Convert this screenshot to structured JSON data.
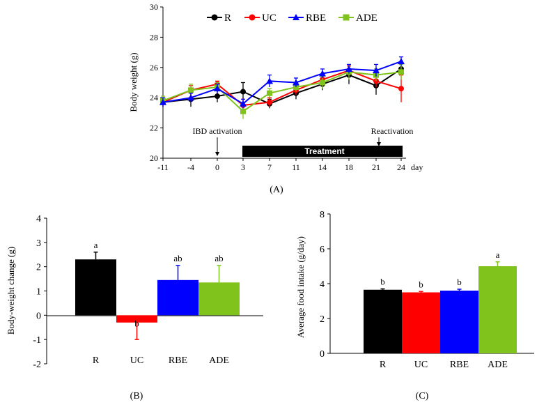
{
  "colors": {
    "R": "#000000",
    "UC": "#ff0000",
    "RBE": "#0000ff",
    "ADE": "#7fc31c"
  },
  "chart_data": [
    {
      "panel": "(A)",
      "type": "line",
      "ylabel": "Body weight (g)",
      "xunit": "day",
      "x": [
        "-11",
        "-4",
        "0",
        "3",
        "7",
        "11",
        "14",
        "18",
        "21",
        "24"
      ],
      "ylim": [
        20,
        30
      ],
      "yticks": [
        20,
        22,
        24,
        26,
        28,
        30
      ],
      "series": [
        {
          "name": "R",
          "values": [
            23.7,
            23.9,
            24.1,
            24.4,
            23.6,
            24.3,
            24.9,
            25.5,
            24.8,
            25.9
          ],
          "err": [
            0.3,
            0.5,
            0.4,
            0.6,
            0.3,
            0.4,
            0.4,
            0.6,
            0.6,
            0.3
          ]
        },
        {
          "name": "UC",
          "values": [
            23.7,
            24.5,
            24.9,
            23.5,
            23.7,
            24.5,
            25.2,
            25.8,
            25.1,
            24.6
          ],
          "err": [
            0.3,
            0.3,
            0.2,
            0.4,
            0.3,
            0.3,
            0.3,
            0.3,
            0.4,
            0.9
          ]
        },
        {
          "name": "RBE",
          "values": [
            23.7,
            24.0,
            24.6,
            23.6,
            25.1,
            25.0,
            25.6,
            25.9,
            25.8,
            26.4
          ],
          "err": [
            0.3,
            0.3,
            0.3,
            0.3,
            0.4,
            0.3,
            0.3,
            0.3,
            0.4,
            0.3
          ]
        },
        {
          "name": "ADE",
          "values": [
            23.8,
            24.5,
            24.7,
            23.1,
            24.3,
            24.7,
            25.0,
            25.7,
            25.5,
            25.7
          ],
          "err": [
            0.3,
            0.4,
            0.3,
            0.5,
            0.3,
            0.3,
            0.4,
            0.5,
            0.4,
            0.5
          ]
        }
      ],
      "annotations": {
        "ibd": "IBD activation",
        "reactivation": "Reactivation",
        "treatment": "Treatment"
      }
    },
    {
      "panel": "(B)",
      "type": "bar",
      "ylabel": "Body-weight change (g)",
      "categories": [
        "R",
        "UC",
        "RBE",
        "ADE"
      ],
      "values": [
        2.3,
        -0.3,
        1.45,
        1.35
      ],
      "err": [
        0.3,
        0.7,
        0.6,
        0.7
      ],
      "letters": [
        "a",
        "b",
        "ab",
        "ab"
      ],
      "ylim": [
        -2,
        4
      ],
      "yticks": [
        -2,
        -1,
        0,
        1,
        2,
        3,
        4
      ]
    },
    {
      "panel": "(C)",
      "type": "bar",
      "ylabel": "Average food intake (g/day)",
      "categories": [
        "R",
        "UC",
        "RBE",
        "ADE"
      ],
      "values": [
        3.65,
        3.5,
        3.6,
        5.0
      ],
      "err": [
        0.05,
        0.05,
        0.08,
        0.25
      ],
      "letters": [
        "b",
        "b",
        "b",
        "a"
      ],
      "ylim": [
        0,
        8
      ],
      "yticks": [
        0,
        2,
        4,
        6,
        8
      ]
    }
  ]
}
